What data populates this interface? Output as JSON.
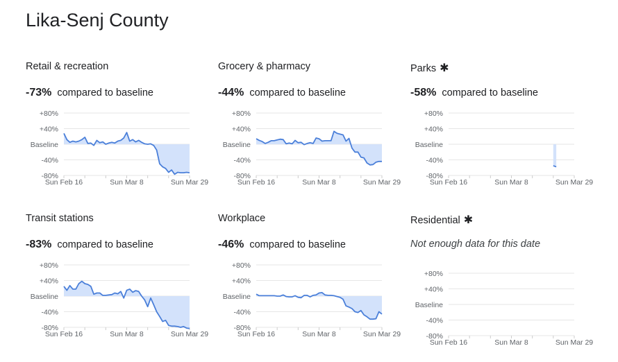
{
  "page_title": "Lika-Senj County",
  "colors": {
    "line": "#4a7fd9",
    "fill": "#d3e2fb",
    "grid": "#e6e6e6"
  },
  "chart_data": [
    {
      "type": "area",
      "title": "Retail & recreation",
      "asterisk": false,
      "change": "-73%",
      "change_text": "compared to baseline",
      "yticks": [
        "+80%",
        "+40%",
        "Baseline",
        "-40%",
        "-80%"
      ],
      "ylim": [
        -80,
        80
      ],
      "xticks": [
        "Sun Feb 16",
        "Sun Mar 8",
        "Sun Mar 29"
      ],
      "x_start": "2020-02-16",
      "x_end": "2020-03-29",
      "values": [
        28,
        12,
        5,
        8,
        6,
        8,
        12,
        18,
        2,
        3,
        -3,
        10,
        4,
        6,
        0,
        3,
        5,
        3,
        8,
        10,
        16,
        30,
        8,
        12,
        6,
        10,
        5,
        1,
        0,
        1,
        -3,
        -15,
        -50,
        -58,
        -62,
        -72,
        -66,
        -77,
        -72,
        -73,
        -73,
        -72,
        -73
      ]
    },
    {
      "type": "area",
      "title": "Grocery & pharmacy",
      "asterisk": false,
      "change": "-44%",
      "change_text": "compared to baseline",
      "yticks": [
        "+80%",
        "+40%",
        "Baseline",
        "-40%",
        "-80%"
      ],
      "ylim": [
        -80,
        80
      ],
      "xticks": [
        "Sun Feb 16",
        "Sun Mar 8",
        "Sun Mar 29"
      ],
      "x_start": "2020-02-16",
      "x_end": "2020-03-29",
      "values": [
        14,
        10,
        7,
        2,
        5,
        9,
        9,
        11,
        13,
        12,
        1,
        3,
        1,
        10,
        4,
        5,
        -1,
        2,
        4,
        2,
        16,
        14,
        8,
        9,
        9,
        9,
        33,
        28,
        26,
        24,
        8,
        15,
        -10,
        -20,
        -20,
        -33,
        -35,
        -48,
        -53,
        -52,
        -46,
        -44,
        -44
      ]
    },
    {
      "type": "area",
      "title": "Parks",
      "asterisk": true,
      "change": "-58%",
      "change_text": "compared to baseline",
      "yticks": [
        "+80%",
        "+40%",
        "Baseline",
        "-40%",
        "-80%"
      ],
      "ylim": [
        -80,
        80
      ],
      "xticks": [
        "Sun Feb 16",
        "Sun Mar 8",
        "Sun Mar 29"
      ],
      "x_start": "2020-02-16",
      "x_end": "2020-03-29",
      "values": [
        null,
        null,
        null,
        null,
        null,
        null,
        null,
        null,
        null,
        null,
        null,
        null,
        null,
        null,
        null,
        null,
        null,
        null,
        null,
        null,
        null,
        null,
        null,
        null,
        null,
        null,
        null,
        null,
        null,
        null,
        null,
        null,
        null,
        null,
        null,
        -55,
        -58,
        null,
        null,
        null,
        null,
        null,
        null
      ]
    },
    {
      "type": "area",
      "title": "Transit stations",
      "asterisk": false,
      "change": "-83%",
      "change_text": "compared to baseline",
      "yticks": [
        "+80%",
        "+40%",
        "Baseline",
        "-40%",
        "-80%"
      ],
      "ylim": [
        -80,
        80
      ],
      "xticks": [
        "Sun Feb 16",
        "Sun Mar 8",
        "Sun Mar 29"
      ],
      "x_start": "2020-02-16",
      "x_end": "2020-03-29",
      "values": [
        25,
        15,
        27,
        18,
        18,
        32,
        38,
        32,
        30,
        25,
        5,
        8,
        8,
        2,
        2,
        3,
        4,
        8,
        6,
        12,
        -5,
        15,
        18,
        10,
        14,
        12,
        0,
        -10,
        -27,
        -5,
        -22,
        -40,
        -52,
        -65,
        -62,
        -75,
        -77,
        -77,
        -78,
        -80,
        -78,
        -82,
        -83
      ]
    },
    {
      "type": "area",
      "title": "Workplace",
      "asterisk": false,
      "change": "-46%",
      "change_text": "compared to baseline",
      "yticks": [
        "+80%",
        "+40%",
        "Baseline",
        "-40%",
        "-80%"
      ],
      "ylim": [
        -80,
        80
      ],
      "xticks": [
        "Sun Feb 16",
        "Sun Mar 8",
        "Sun Mar 29"
      ],
      "x_start": "2020-02-16",
      "x_end": "2020-03-29",
      "values": [
        5,
        1,
        1,
        1,
        1,
        1,
        1,
        0,
        0,
        3,
        -1,
        -2,
        -2,
        1,
        -3,
        -4,
        2,
        2,
        -2,
        2,
        3,
        8,
        9,
        3,
        2,
        2,
        1,
        -1,
        -3,
        -8,
        -25,
        -28,
        -32,
        -40,
        -42,
        -37,
        -48,
        -53,
        -59,
        -59,
        -58,
        -40,
        -46
      ]
    },
    {
      "type": "area",
      "title": "Residential",
      "asterisk": true,
      "note": "Not enough data for this date",
      "yticks": [
        "+80%",
        "+40%",
        "Baseline",
        "-40%",
        "-80%"
      ],
      "ylim": [
        -80,
        80
      ],
      "xticks": [
        "Sun Feb 16",
        "Sun Mar 8",
        "Sun Mar 29"
      ],
      "x_start": "2020-02-16",
      "x_end": "2020-03-29",
      "values": []
    }
  ]
}
